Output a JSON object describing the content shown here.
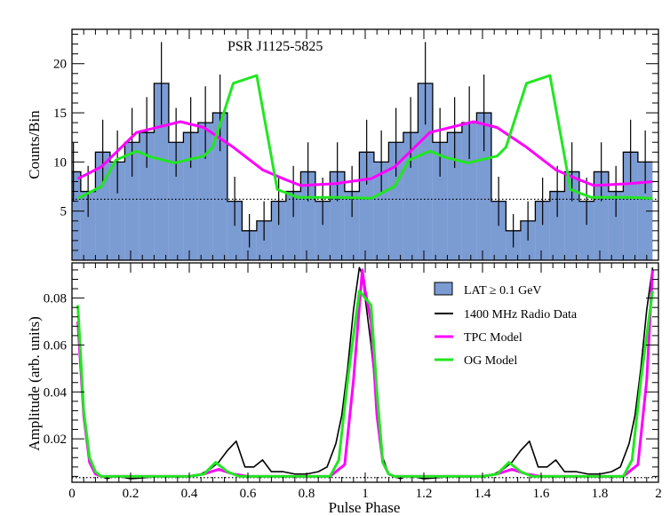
{
  "chart_data": {
    "type": "bar",
    "title": "PSR J1125-5825",
    "xlabel": "Pulse Phase",
    "xlim": [
      0,
      2
    ],
    "x_ticks": [
      0,
      0.2,
      0.4,
      0.6,
      0.8,
      1,
      1.2,
      1.4,
      1.6,
      1.8,
      2
    ],
    "x_tick_labels": [
      "0",
      "0.2",
      "0.4",
      "0.6",
      "0.8",
      "1",
      "1.2",
      "1.4",
      "1.6",
      "1.8",
      "2"
    ],
    "colors": {
      "histogram_fill": "#7b9bd3",
      "radio": "#000000",
      "tpc": "#ff00ff",
      "og": "#22e622"
    },
    "top_panel": {
      "ylabel": "Counts/Bin",
      "ylim": [
        0,
        23.5
      ],
      "y_ticks": [
        5,
        10,
        15,
        20
      ],
      "y_tick_labels": [
        "5",
        "10",
        "15",
        "20"
      ],
      "background_level": 6.2,
      "bin_width": 0.05,
      "counts": [
        9,
        7,
        11,
        10,
        12,
        13,
        18,
        12,
        13,
        14,
        15,
        6,
        3,
        4,
        6,
        7,
        9,
        6,
        9,
        7,
        11,
        10,
        12,
        13,
        18,
        12,
        13,
        14,
        15,
        6,
        3,
        4,
        6,
        7,
        9,
        6,
        9,
        7,
        11,
        10
      ],
      "hist_heights": [
        9,
        7,
        11,
        10,
        12,
        13,
        18,
        12,
        13,
        14,
        15,
        6,
        3,
        4,
        6,
        7,
        9,
        6,
        9,
        7,
        11,
        10,
        12,
        13,
        18,
        12,
        13,
        14,
        15,
        6,
        3,
        4,
        6,
        7,
        9,
        6,
        9,
        7,
        11,
        10
      ],
      "x_offset": -0.02,
      "errors": [
        3,
        2.6,
        3.3,
        3.2,
        3.5,
        3.6,
        4.2,
        3.5,
        3.6,
        3.7,
        3.9,
        2.5,
        1.7,
        2,
        2.4,
        2.6,
        3,
        2.4,
        3,
        2.6,
        3.3,
        3.2,
        3.5,
        3.6,
        4.2,
        3.5,
        3.6,
        3.7,
        3.9,
        2.5,
        1.7,
        2,
        2.4,
        2.6,
        3,
        2.4,
        3,
        2.6,
        3.3,
        3.2
      ],
      "tpc_model": {
        "x": [
          0.02,
          0.1,
          0.22,
          0.37,
          0.45,
          0.55,
          0.65,
          0.72,
          0.78,
          0.9,
          1.02,
          1.1,
          1.22,
          1.37,
          1.45,
          1.55,
          1.65,
          1.72,
          1.78,
          1.9,
          1.98
        ],
        "y": [
          8.3,
          9.5,
          13,
          14.1,
          13.5,
          11.5,
          9.2,
          8.3,
          7.6,
          7.8,
          8.3,
          9.5,
          13,
          14.1,
          13.5,
          11.5,
          9.2,
          8.3,
          7.6,
          7.8,
          8.0
        ]
      },
      "og_model": {
        "x": [
          0.02,
          0.1,
          0.15,
          0.22,
          0.27,
          0.35,
          0.45,
          0.48,
          0.55,
          0.63,
          0.7,
          0.77,
          0.9,
          1.02,
          1.1,
          1.15,
          1.22,
          1.27,
          1.35,
          1.45,
          1.48,
          1.55,
          1.63,
          1.7,
          1.77,
          1.9,
          1.98
        ],
        "y": [
          6.3,
          7.5,
          10.2,
          11.1,
          10.5,
          9.9,
          10.6,
          11.5,
          18,
          18.8,
          7.2,
          6.4,
          6.4,
          6.3,
          7.5,
          10.2,
          11.1,
          10.5,
          9.9,
          10.6,
          11.5,
          18,
          18.8,
          7.2,
          6.4,
          6.4,
          6.3
        ]
      }
    },
    "bottom_panel": {
      "ylabel": "Amplitude (arb. units)",
      "ylim": [
        0.0015,
        0.095
      ],
      "y_ticks": [
        0.02,
        0.04,
        0.06,
        0.08
      ],
      "y_tick_labels": [
        "0.02",
        "0.04",
        "0.06",
        "0.08"
      ],
      "background_level": 0.0035,
      "radio": {
        "x": [
          0.02,
          0.04,
          0.06,
          0.08,
          0.1,
          0.12,
          0.14,
          0.16,
          0.2,
          0.3,
          0.4,
          0.44,
          0.47,
          0.5,
          0.53,
          0.56,
          0.59,
          0.62,
          0.65,
          0.68,
          0.72,
          0.76,
          0.8,
          0.84,
          0.87,
          0.9,
          0.92,
          0.94,
          0.96,
          0.98,
          0.99,
          1.0,
          1.02,
          1.04,
          1.06,
          1.08,
          1.1,
          1.12,
          1.14,
          1.16,
          1.2,
          1.3,
          1.4,
          1.44,
          1.47,
          1.5,
          1.53,
          1.56,
          1.59,
          1.62,
          1.65,
          1.68,
          1.72,
          1.76,
          1.8,
          1.84,
          1.87,
          1.9,
          1.92,
          1.94,
          1.96,
          1.98
        ],
        "y": [
          0.07,
          0.03,
          0.012,
          0.006,
          0.004,
          0.003,
          0.004,
          0.004,
          0.003,
          0.004,
          0.004,
          0.005,
          0.007,
          0.01,
          0.015,
          0.019,
          0.008,
          0.008,
          0.011,
          0.006,
          0.006,
          0.005,
          0.005,
          0.006,
          0.008,
          0.018,
          0.03,
          0.05,
          0.075,
          0.093,
          0.09,
          0.08,
          0.06,
          0.035,
          0.012,
          0.005,
          0.004,
          0.003,
          0.004,
          0.004,
          0.003,
          0.004,
          0.004,
          0.005,
          0.007,
          0.01,
          0.015,
          0.019,
          0.008,
          0.008,
          0.011,
          0.006,
          0.006,
          0.005,
          0.005,
          0.006,
          0.008,
          0.018,
          0.03,
          0.05,
          0.075,
          0.093
        ]
      },
      "tpc_model": {
        "x": [
          0.02,
          0.04,
          0.06,
          0.08,
          0.1,
          0.2,
          0.4,
          0.45,
          0.5,
          0.55,
          0.6,
          0.8,
          0.88,
          0.93,
          0.96,
          0.99,
          1.0,
          1.02,
          1.04,
          1.06,
          1.08,
          1.1,
          1.2,
          1.4,
          1.45,
          1.5,
          1.55,
          1.6,
          1.8,
          1.88,
          1.93,
          1.96,
          1.98
        ],
        "y": [
          0.07,
          0.03,
          0.01,
          0.005,
          0.004,
          0.004,
          0.004,
          0.005,
          0.007,
          0.005,
          0.004,
          0.004,
          0.004,
          0.009,
          0.045,
          0.092,
          0.083,
          0.07,
          0.03,
          0.01,
          0.005,
          0.004,
          0.004,
          0.004,
          0.005,
          0.007,
          0.005,
          0.004,
          0.004,
          0.004,
          0.009,
          0.045,
          0.092
        ]
      },
      "og_model": {
        "x": [
          0.02,
          0.04,
          0.06,
          0.08,
          0.1,
          0.2,
          0.4,
          0.45,
          0.49,
          0.53,
          0.57,
          0.6,
          0.8,
          0.88,
          0.91,
          0.94,
          0.98,
          1.0,
          1.02,
          1.04,
          1.06,
          1.08,
          1.1,
          1.2,
          1.4,
          1.45,
          1.49,
          1.53,
          1.57,
          1.6,
          1.8,
          1.88,
          1.91,
          1.94,
          1.98
        ],
        "y": [
          0.077,
          0.032,
          0.012,
          0.006,
          0.004,
          0.004,
          0.004,
          0.005,
          0.01,
          0.006,
          0.004,
          0.004,
          0.004,
          0.004,
          0.011,
          0.045,
          0.083,
          0.08,
          0.077,
          0.04,
          0.01,
          0.005,
          0.004,
          0.004,
          0.004,
          0.005,
          0.01,
          0.006,
          0.004,
          0.004,
          0.004,
          0.004,
          0.011,
          0.045,
          0.083
        ]
      }
    },
    "legend": {
      "placement": "top-right of bottom panel",
      "entries": [
        {
          "label": "LAT ≥ 0.1 GeV",
          "kind": "box"
        },
        {
          "label": "1400 MHz Radio Data",
          "kind": "radio"
        },
        {
          "label": "TPC Model",
          "kind": "tpc"
        },
        {
          "label": "OG Model",
          "kind": "og"
        }
      ]
    }
  }
}
